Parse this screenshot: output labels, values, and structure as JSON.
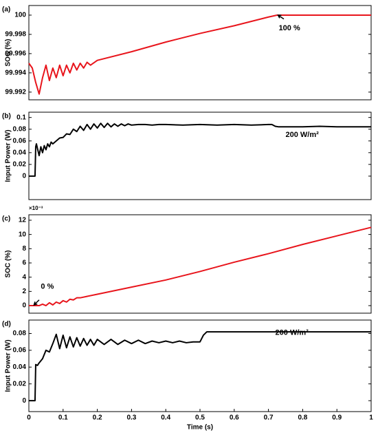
{
  "chart_data": [
    {
      "type": "line",
      "panel_label": "(a)",
      "ylabel": "SOC (%)",
      "annotation": "100 %",
      "x": [
        0,
        0.01,
        0.02,
        0.03,
        0.04,
        0.05,
        0.06,
        0.07,
        0.08,
        0.09,
        0.1,
        0.11,
        0.12,
        0.13,
        0.14,
        0.15,
        0.16,
        0.17,
        0.18,
        0.2,
        0.3,
        0.4,
        0.5,
        0.6,
        0.7,
        0.725,
        0.8,
        1
      ],
      "series": [
        {
          "color": "#e8141b",
          "values": [
            99.995,
            99.9945,
            99.993,
            99.9918,
            99.9935,
            99.9948,
            99.9932,
            99.9945,
            99.9935,
            99.9948,
            99.9937,
            99.9948,
            99.994,
            99.995,
            99.9943,
            99.995,
            99.9945,
            99.9951,
            99.9948,
            99.9953,
            99.9962,
            99.9972,
            99.9981,
            99.9989,
            99.9998,
            100,
            100,
            100
          ]
        }
      ],
      "xlim": [
        0,
        1
      ],
      "ylim": [
        99.9912,
        100.001
      ],
      "yticks": [
        99.992,
        99.994,
        99.996,
        99.998,
        100
      ]
    },
    {
      "type": "line",
      "panel_label": "(b)",
      "ylabel": "Input Power (W)",
      "annotation": "200 W/m²",
      "x": [
        0,
        0.018,
        0.02,
        0.022,
        0.03,
        0.035,
        0.04,
        0.045,
        0.05,
        0.055,
        0.06,
        0.065,
        0.07,
        0.08,
        0.09,
        0.1,
        0.11,
        0.12,
        0.13,
        0.14,
        0.15,
        0.16,
        0.17,
        0.18,
        0.19,
        0.2,
        0.21,
        0.22,
        0.23,
        0.24,
        0.25,
        0.26,
        0.27,
        0.28,
        0.29,
        0.3,
        0.32,
        0.34,
        0.36,
        0.38,
        0.4,
        0.45,
        0.5,
        0.55,
        0.6,
        0.65,
        0.7,
        0.71,
        0.72,
        0.73,
        0.75,
        0.8,
        0.85,
        0.9,
        0.95,
        1
      ],
      "series": [
        {
          "color": "#000000",
          "values": [
            0,
            0,
            0.05,
            0.055,
            0.035,
            0.05,
            0.04,
            0.052,
            0.045,
            0.055,
            0.05,
            0.058,
            0.055,
            0.06,
            0.065,
            0.066,
            0.072,
            0.071,
            0.08,
            0.076,
            0.085,
            0.078,
            0.088,
            0.08,
            0.089,
            0.082,
            0.09,
            0.083,
            0.09,
            0.084,
            0.089,
            0.085,
            0.089,
            0.086,
            0.089,
            0.087,
            0.088,
            0.088,
            0.087,
            0.088,
            0.088,
            0.087,
            0.088,
            0.087,
            0.088,
            0.087,
            0.088,
            0.088,
            0.085,
            0.084,
            0.084,
            0.084,
            0.085,
            0.084,
            0.084,
            0.084
          ]
        }
      ],
      "xlim": [
        0,
        1
      ],
      "ylim": [
        -0.04,
        0.109
      ],
      "yticks": [
        0,
        0.02,
        0.04,
        0.06,
        0.08,
        0.1
      ]
    },
    {
      "type": "line",
      "panel_label": "(c)",
      "ylabel": "SOC (%)",
      "annotation": "0 %",
      "scale_label": "×10⁻³",
      "x": [
        0,
        0.03,
        0.04,
        0.05,
        0.06,
        0.07,
        0.08,
        0.09,
        0.1,
        0.11,
        0.12,
        0.13,
        0.14,
        0.15,
        0.2,
        0.3,
        0.4,
        0.5,
        0.6,
        0.7,
        0.8,
        0.9,
        1
      ],
      "series": [
        {
          "color": "#e8141b",
          "values": [
            0,
            0,
            0.2,
            0,
            0.4,
            0.1,
            0.5,
            0.3,
            0.7,
            0.5,
            0.9,
            0.8,
            1.1,
            1.1,
            1.6,
            2.6,
            3.6,
            4.8,
            6.1,
            7.3,
            8.6,
            9.8,
            11
          ]
        }
      ],
      "xlim": [
        0,
        1
      ],
      "ylim": [
        -1.06,
        12.77
      ],
      "yticks": [
        0,
        2,
        4,
        6,
        8,
        10,
        12
      ]
    },
    {
      "type": "line",
      "panel_label": "(d)",
      "ylabel": "Input Power (W)",
      "annotation": "200 W/m²",
      "xlabel": "Time (s)",
      "x": [
        0,
        0.018,
        0.02,
        0.025,
        0.03,
        0.04,
        0.05,
        0.06,
        0.07,
        0.08,
        0.09,
        0.1,
        0.11,
        0.12,
        0.13,
        0.14,
        0.15,
        0.16,
        0.17,
        0.18,
        0.19,
        0.2,
        0.22,
        0.24,
        0.26,
        0.28,
        0.3,
        0.32,
        0.34,
        0.36,
        0.38,
        0.4,
        0.42,
        0.44,
        0.46,
        0.48,
        0.5,
        0.51,
        0.52,
        0.55,
        0.6,
        0.7,
        0.8,
        0.9,
        1
      ],
      "series": [
        {
          "color": "#000000",
          "values": [
            0,
            0,
            0.043,
            0.042,
            0.045,
            0.05,
            0.06,
            0.058,
            0.068,
            0.079,
            0.062,
            0.078,
            0.063,
            0.076,
            0.064,
            0.075,
            0.065,
            0.074,
            0.066,
            0.073,
            0.066,
            0.073,
            0.067,
            0.073,
            0.067,
            0.072,
            0.068,
            0.072,
            0.068,
            0.071,
            0.069,
            0.071,
            0.069,
            0.071,
            0.069,
            0.07,
            0.07,
            0.078,
            0.082,
            0.082,
            0.082,
            0.082,
            0.082,
            0.082,
            0.082
          ]
        }
      ],
      "xlim": [
        0,
        1
      ],
      "ylim": [
        -0.013,
        0.096
      ],
      "yticks": [
        0,
        0.02,
        0.04,
        0.06,
        0.08
      ],
      "xticks": [
        0,
        0.1,
        0.2,
        0.3,
        0.4,
        0.5,
        0.6,
        0.7,
        0.8,
        0.9,
        1
      ]
    }
  ]
}
